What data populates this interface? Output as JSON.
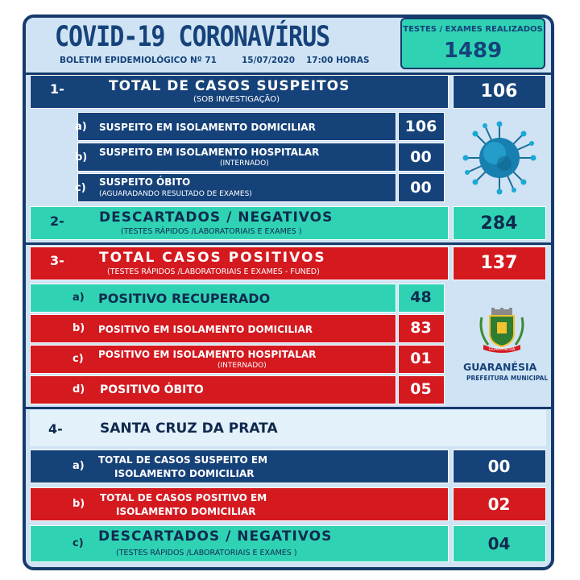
{
  "header": {
    "title": "COVID-19  CORONAVÍRUS",
    "bulletin": "BOLETIM EPIDEMIOLÓGICO Nº 71",
    "date": "15/07/2020",
    "time": "17:00 HORAS",
    "tests_label": "TESTES / EXAMES REALIZADOS",
    "tests_value": "1489"
  },
  "section1": {
    "num": "1-",
    "title": "TOTAL DE CASOS SUSPEITOS",
    "subtitle": "(SOB INVESTIGAÇÃO)",
    "value": "106",
    "rows": [
      {
        "letter": "a)",
        "label": "SUSPEITO EM ISOLAMENTO DOMICILIAR",
        "sub": "",
        "value": "106"
      },
      {
        "letter": "b)",
        "label": "SUSPEITO EM ISOLAMENTO HOSPITALAR",
        "sub": "(INTERNADO)",
        "value": "00"
      },
      {
        "letter": "c)",
        "label": "SUSPEITO ÓBITO",
        "sub": "(AGUARADANDO RESULTADO  DE EXAMES)",
        "value": "00"
      }
    ]
  },
  "section2": {
    "num": "2-",
    "title": "DESCARTADOS / NEGATIVOS",
    "subtitle": "(TESTES RÁPIDOS /LABORATORIAIS E EXAMES )",
    "value": "284"
  },
  "section3": {
    "num": "3-",
    "title": "TOTAL CASOS POSITIVOS",
    "subtitle": "(TESTES RÁPIDOS /LABORATORIAIS E EXAMES - FUNED)",
    "value": "137",
    "rows": [
      {
        "letter": "a)",
        "label": "POSITIVO RECUPERADO",
        "sub": "",
        "value": "48"
      },
      {
        "letter": "b)",
        "label": "POSITIVO EM ISOLAMENTO DOMICILIAR",
        "sub": "",
        "value": "83"
      },
      {
        "letter": "c)",
        "label": "POSITIVO EM ISOLAMENTO HOSPITALAR",
        "sub": "(INTERNADO)",
        "value": "01"
      },
      {
        "letter": "d)",
        "label": "POSITIVO ÓBITO",
        "sub": "",
        "value": "05"
      }
    ]
  },
  "logo": {
    "name": "GUARANÉSIA",
    "sub": "PREFEITURA MUNICIPAL",
    "ribbon": "GUARANÉSIA"
  },
  "section4": {
    "num": "4-",
    "title": "SANTA CRUZ DA PRATA",
    "rows": [
      {
        "letter": "a)",
        "line1": "TOTAL DE CASOS SUSPEITO EM",
        "line2": "ISOLAMENTO DOMICILIAR",
        "value": "00"
      },
      {
        "letter": "b)",
        "line1": "TOTAL DE CASOS POSITIVO EM",
        "line2": "ISOLAMENTO DOMICILIAR",
        "value": "02"
      },
      {
        "letter": "c)",
        "line1": "DESCARTADOS / NEGATIVOS",
        "line2": "(TESTES RÁPIDOS /LABORATORIAIS E EXAMES )",
        "value": "04"
      }
    ]
  },
  "colors": {
    "navy": "#16427a",
    "red": "#d4191f",
    "teal": "#2fd3b4",
    "panel": "#cfe3f4"
  }
}
